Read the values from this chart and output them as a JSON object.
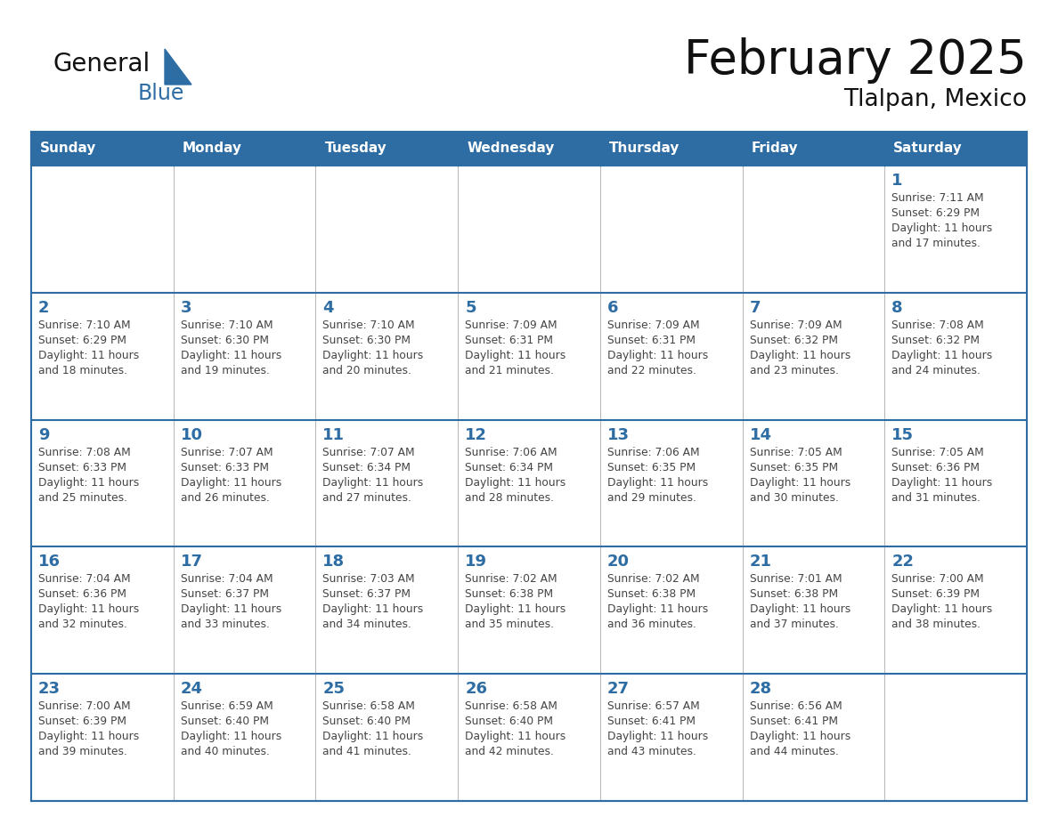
{
  "title": "February 2025",
  "subtitle": "Tlalpan, Mexico",
  "days_of_week": [
    "Sunday",
    "Monday",
    "Tuesday",
    "Wednesday",
    "Thursday",
    "Friday",
    "Saturday"
  ],
  "header_bg": "#2E6DA4",
  "header_text": "#FFFFFF",
  "cell_bg_white": "#FFFFFF",
  "cell_bg_light": "#F5F5F5",
  "border_color_dark": "#2E6DA4",
  "border_color_light": "#AAAAAA",
  "day_number_color": "#2E6DA4",
  "text_color": "#444444",
  "title_color": "#111111",
  "logo_general_color": "#111111",
  "logo_blue_color": "#2E6DA4",
  "weeks": [
    [
      {
        "day": null,
        "sunrise": null,
        "sunset": null,
        "daylight": null
      },
      {
        "day": null,
        "sunrise": null,
        "sunset": null,
        "daylight": null
      },
      {
        "day": null,
        "sunrise": null,
        "sunset": null,
        "daylight": null
      },
      {
        "day": null,
        "sunrise": null,
        "sunset": null,
        "daylight": null
      },
      {
        "day": null,
        "sunrise": null,
        "sunset": null,
        "daylight": null
      },
      {
        "day": null,
        "sunrise": null,
        "sunset": null,
        "daylight": null
      },
      {
        "day": 1,
        "sunrise": "7:11 AM",
        "sunset": "6:29 PM",
        "daylight": "11 hours\nand 17 minutes."
      }
    ],
    [
      {
        "day": 2,
        "sunrise": "7:10 AM",
        "sunset": "6:29 PM",
        "daylight": "11 hours\nand 18 minutes."
      },
      {
        "day": 3,
        "sunrise": "7:10 AM",
        "sunset": "6:30 PM",
        "daylight": "11 hours\nand 19 minutes."
      },
      {
        "day": 4,
        "sunrise": "7:10 AM",
        "sunset": "6:30 PM",
        "daylight": "11 hours\nand 20 minutes."
      },
      {
        "day": 5,
        "sunrise": "7:09 AM",
        "sunset": "6:31 PM",
        "daylight": "11 hours\nand 21 minutes."
      },
      {
        "day": 6,
        "sunrise": "7:09 AM",
        "sunset": "6:31 PM",
        "daylight": "11 hours\nand 22 minutes."
      },
      {
        "day": 7,
        "sunrise": "7:09 AM",
        "sunset": "6:32 PM",
        "daylight": "11 hours\nand 23 minutes."
      },
      {
        "day": 8,
        "sunrise": "7:08 AM",
        "sunset": "6:32 PM",
        "daylight": "11 hours\nand 24 minutes."
      }
    ],
    [
      {
        "day": 9,
        "sunrise": "7:08 AM",
        "sunset": "6:33 PM",
        "daylight": "11 hours\nand 25 minutes."
      },
      {
        "day": 10,
        "sunrise": "7:07 AM",
        "sunset": "6:33 PM",
        "daylight": "11 hours\nand 26 minutes."
      },
      {
        "day": 11,
        "sunrise": "7:07 AM",
        "sunset": "6:34 PM",
        "daylight": "11 hours\nand 27 minutes."
      },
      {
        "day": 12,
        "sunrise": "7:06 AM",
        "sunset": "6:34 PM",
        "daylight": "11 hours\nand 28 minutes."
      },
      {
        "day": 13,
        "sunrise": "7:06 AM",
        "sunset": "6:35 PM",
        "daylight": "11 hours\nand 29 minutes."
      },
      {
        "day": 14,
        "sunrise": "7:05 AM",
        "sunset": "6:35 PM",
        "daylight": "11 hours\nand 30 minutes."
      },
      {
        "day": 15,
        "sunrise": "7:05 AM",
        "sunset": "6:36 PM",
        "daylight": "11 hours\nand 31 minutes."
      }
    ],
    [
      {
        "day": 16,
        "sunrise": "7:04 AM",
        "sunset": "6:36 PM",
        "daylight": "11 hours\nand 32 minutes."
      },
      {
        "day": 17,
        "sunrise": "7:04 AM",
        "sunset": "6:37 PM",
        "daylight": "11 hours\nand 33 minutes."
      },
      {
        "day": 18,
        "sunrise": "7:03 AM",
        "sunset": "6:37 PM",
        "daylight": "11 hours\nand 34 minutes."
      },
      {
        "day": 19,
        "sunrise": "7:02 AM",
        "sunset": "6:38 PM",
        "daylight": "11 hours\nand 35 minutes."
      },
      {
        "day": 20,
        "sunrise": "7:02 AM",
        "sunset": "6:38 PM",
        "daylight": "11 hours\nand 36 minutes."
      },
      {
        "day": 21,
        "sunrise": "7:01 AM",
        "sunset": "6:38 PM",
        "daylight": "11 hours\nand 37 minutes."
      },
      {
        "day": 22,
        "sunrise": "7:00 AM",
        "sunset": "6:39 PM",
        "daylight": "11 hours\nand 38 minutes."
      }
    ],
    [
      {
        "day": 23,
        "sunrise": "7:00 AM",
        "sunset": "6:39 PM",
        "daylight": "11 hours\nand 39 minutes."
      },
      {
        "day": 24,
        "sunrise": "6:59 AM",
        "sunset": "6:40 PM",
        "daylight": "11 hours\nand 40 minutes."
      },
      {
        "day": 25,
        "sunrise": "6:58 AM",
        "sunset": "6:40 PM",
        "daylight": "11 hours\nand 41 minutes."
      },
      {
        "day": 26,
        "sunrise": "6:58 AM",
        "sunset": "6:40 PM",
        "daylight": "11 hours\nand 42 minutes."
      },
      {
        "day": 27,
        "sunrise": "6:57 AM",
        "sunset": "6:41 PM",
        "daylight": "11 hours\nand 43 minutes."
      },
      {
        "day": 28,
        "sunrise": "6:56 AM",
        "sunset": "6:41 PM",
        "daylight": "11 hours\nand 44 minutes."
      },
      {
        "day": null,
        "sunrise": null,
        "sunset": null,
        "daylight": null
      }
    ]
  ]
}
